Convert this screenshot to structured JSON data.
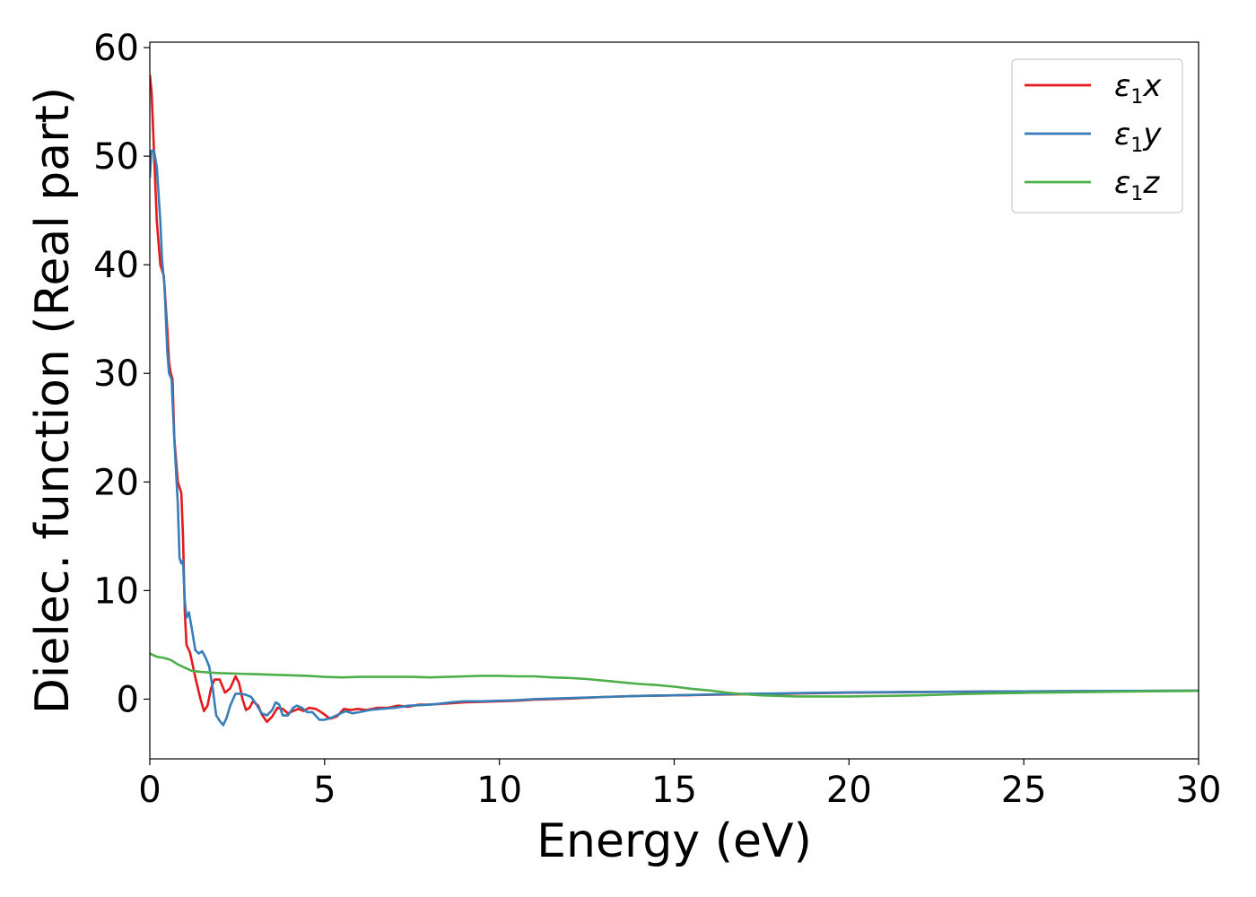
{
  "chart_data": {
    "type": "line",
    "xlabel": "Energy (eV)",
    "ylabel": "Dielec. function (Real part)",
    "xlim": [
      0,
      30
    ],
    "ylim": [
      -5.5,
      60.5
    ],
    "xticks": [
      "0",
      "5",
      "10",
      "15",
      "20",
      "25",
      "30"
    ],
    "yticks": [
      "0",
      "10",
      "20",
      "30",
      "40",
      "50",
      "60"
    ],
    "grid": false,
    "legend_position": "top-right",
    "series": [
      {
        "name": "ε1x",
        "legend": {
          "symbol": "ε",
          "sub": "1",
          "var": "x"
        },
        "color": "#e41a1c",
        "points": [
          [
            0,
            57.5
          ],
          [
            0.05,
            56
          ],
          [
            0.1,
            52
          ],
          [
            0.2,
            44
          ],
          [
            0.3,
            40
          ],
          [
            0.4,
            39
          ],
          [
            0.5,
            34
          ],
          [
            0.55,
            31
          ],
          [
            0.6,
            30
          ],
          [
            0.65,
            29.5
          ],
          [
            0.7,
            24
          ],
          [
            0.8,
            20
          ],
          [
            0.85,
            19.5
          ],
          [
            0.9,
            19
          ],
          [
            0.95,
            15
          ],
          [
            1.0,
            8
          ],
          [
            1.05,
            5
          ],
          [
            1.15,
            4.3
          ],
          [
            1.3,
            2
          ],
          [
            1.45,
            0
          ],
          [
            1.55,
            -1.1
          ],
          [
            1.65,
            -0.6
          ],
          [
            1.75,
            1
          ],
          [
            1.85,
            1.8
          ],
          [
            2.0,
            1.8
          ],
          [
            2.15,
            0.6
          ],
          [
            2.3,
            1
          ],
          [
            2.45,
            2.1
          ],
          [
            2.55,
            1.5
          ],
          [
            2.65,
            0
          ],
          [
            2.75,
            -1
          ],
          [
            2.85,
            -0.8
          ],
          [
            2.95,
            -0.2
          ],
          [
            3.1,
            -0.6
          ],
          [
            3.2,
            -1.4
          ],
          [
            3.35,
            -2.1
          ],
          [
            3.5,
            -1.6
          ],
          [
            3.65,
            -0.8
          ],
          [
            3.8,
            -0.9
          ],
          [
            3.95,
            -1.3
          ],
          [
            4.1,
            -1.1
          ],
          [
            4.25,
            -0.9
          ],
          [
            4.4,
            -1.1
          ],
          [
            4.55,
            -0.8
          ],
          [
            4.75,
            -0.9
          ],
          [
            4.95,
            -1.3
          ],
          [
            5.15,
            -1.8
          ],
          [
            5.35,
            -1.6
          ],
          [
            5.55,
            -0.9
          ],
          [
            5.75,
            -1.0
          ],
          [
            5.95,
            -0.9
          ],
          [
            6.2,
            -1.0
          ],
          [
            6.5,
            -0.8
          ],
          [
            6.8,
            -0.8
          ],
          [
            7.1,
            -0.6
          ],
          [
            7.4,
            -0.7
          ],
          [
            7.7,
            -0.5
          ],
          [
            8.0,
            -0.5
          ],
          [
            8.5,
            -0.4
          ],
          [
            9.0,
            -0.3
          ],
          [
            9.5,
            -0.25
          ],
          [
            10,
            -0.2
          ],
          [
            10.5,
            -0.15
          ],
          [
            11,
            -0.05
          ],
          [
            12,
            0.05
          ],
          [
            13,
            0.2
          ],
          [
            14,
            0.3
          ],
          [
            15,
            0.35
          ],
          [
            16,
            0.4
          ],
          [
            17,
            0.45
          ],
          [
            18,
            0.5
          ],
          [
            19,
            0.55
          ],
          [
            20,
            0.6
          ],
          [
            22,
            0.65
          ],
          [
            24,
            0.7
          ],
          [
            26,
            0.72
          ],
          [
            28,
            0.75
          ],
          [
            30,
            0.78
          ]
        ]
      },
      {
        "name": "ε1y",
        "legend": {
          "symbol": "ε",
          "sub": "1",
          "var": "y"
        },
        "color": "#377eb8",
        "points": [
          [
            0,
            48
          ],
          [
            0.05,
            50.5
          ],
          [
            0.12,
            50.5
          ],
          [
            0.2,
            49
          ],
          [
            0.3,
            44
          ],
          [
            0.35,
            40.5
          ],
          [
            0.42,
            38
          ],
          [
            0.5,
            32
          ],
          [
            0.55,
            30
          ],
          [
            0.62,
            29.5
          ],
          [
            0.7,
            24
          ],
          [
            0.75,
            21
          ],
          [
            0.8,
            18
          ],
          [
            0.85,
            13
          ],
          [
            0.9,
            12.5
          ],
          [
            0.95,
            12.8
          ],
          [
            1.0,
            9
          ],
          [
            1.05,
            7.5
          ],
          [
            1.12,
            8
          ],
          [
            1.2,
            6.5
          ],
          [
            1.3,
            4.5
          ],
          [
            1.4,
            4.2
          ],
          [
            1.5,
            4.4
          ],
          [
            1.6,
            3.8
          ],
          [
            1.7,
            3.0
          ],
          [
            1.8,
            1
          ],
          [
            1.9,
            -1.5
          ],
          [
            2.0,
            -2
          ],
          [
            2.1,
            -2.4
          ],
          [
            2.2,
            -1.7
          ],
          [
            2.3,
            -0.6
          ],
          [
            2.45,
            0.5
          ],
          [
            2.6,
            0.5
          ],
          [
            2.75,
            0.4
          ],
          [
            2.9,
            0.2
          ],
          [
            3.05,
            -0.5
          ],
          [
            3.2,
            -1.3
          ],
          [
            3.35,
            -1.5
          ],
          [
            3.5,
            -1.0
          ],
          [
            3.6,
            -0.3
          ],
          [
            3.7,
            -0.5
          ],
          [
            3.8,
            -1.5
          ],
          [
            3.95,
            -1.5
          ],
          [
            4.1,
            -0.8
          ],
          [
            4.2,
            -0.6
          ],
          [
            4.35,
            -0.8
          ],
          [
            4.5,
            -1.2
          ],
          [
            4.65,
            -1.2
          ],
          [
            4.85,
            -1.9
          ],
          [
            5.0,
            -1.9
          ],
          [
            5.2,
            -1.7
          ],
          [
            5.4,
            -1.4
          ],
          [
            5.6,
            -1.1
          ],
          [
            5.8,
            -1.3
          ],
          [
            6.0,
            -1.2
          ],
          [
            6.3,
            -1.0
          ],
          [
            6.6,
            -0.9
          ],
          [
            7.0,
            -0.8
          ],
          [
            7.4,
            -0.6
          ],
          [
            7.8,
            -0.55
          ],
          [
            8.2,
            -0.45
          ],
          [
            8.6,
            -0.3
          ],
          [
            9.0,
            -0.2
          ],
          [
            9.5,
            -0.2
          ],
          [
            10,
            -0.15
          ],
          [
            10.5,
            -0.1
          ],
          [
            11,
            0
          ],
          [
            12,
            0.1
          ],
          [
            13,
            0.2
          ],
          [
            14,
            0.3
          ],
          [
            15,
            0.35
          ],
          [
            16,
            0.42
          ],
          [
            17,
            0.48
          ],
          [
            18,
            0.52
          ],
          [
            19,
            0.58
          ],
          [
            20,
            0.62
          ],
          [
            22,
            0.66
          ],
          [
            24,
            0.7
          ],
          [
            26,
            0.73
          ],
          [
            28,
            0.76
          ],
          [
            30,
            0.79
          ]
        ]
      },
      {
        "name": "ε1z",
        "legend": {
          "symbol": "ε",
          "sub": "1",
          "var": "z"
        },
        "color": "#4daf4a",
        "points": [
          [
            0,
            4.2
          ],
          [
            0.2,
            3.9
          ],
          [
            0.4,
            3.8
          ],
          [
            0.6,
            3.6
          ],
          [
            0.8,
            3.2
          ],
          [
            1.0,
            2.9
          ],
          [
            1.2,
            2.6
          ],
          [
            1.5,
            2.5
          ],
          [
            2.0,
            2.4
          ],
          [
            2.5,
            2.35
          ],
          [
            3.0,
            2.3
          ],
          [
            3.5,
            2.25
          ],
          [
            4.0,
            2.2
          ],
          [
            4.5,
            2.15
          ],
          [
            5.0,
            2.05
          ],
          [
            5.5,
            2.0
          ],
          [
            6.0,
            2.05
          ],
          [
            6.5,
            2.05
          ],
          [
            7.0,
            2.05
          ],
          [
            7.5,
            2.05
          ],
          [
            8.0,
            2.0
          ],
          [
            8.5,
            2.05
          ],
          [
            9.0,
            2.1
          ],
          [
            9.5,
            2.15
          ],
          [
            10,
            2.15
          ],
          [
            10.5,
            2.1
          ],
          [
            11,
            2.1
          ],
          [
            11.5,
            2.0
          ],
          [
            12,
            1.95
          ],
          [
            12.5,
            1.85
          ],
          [
            13,
            1.7
          ],
          [
            13.5,
            1.55
          ],
          [
            14,
            1.4
          ],
          [
            14.5,
            1.3
          ],
          [
            15,
            1.15
          ],
          [
            15.5,
            0.95
          ],
          [
            16,
            0.8
          ],
          [
            16.5,
            0.6
          ],
          [
            17,
            0.45
          ],
          [
            17.5,
            0.35
          ],
          [
            18,
            0.3
          ],
          [
            18.5,
            0.25
          ],
          [
            19,
            0.25
          ],
          [
            19.5,
            0.25
          ],
          [
            20,
            0.25
          ],
          [
            21,
            0.3
          ],
          [
            22,
            0.35
          ],
          [
            23,
            0.45
          ],
          [
            24,
            0.52
          ],
          [
            25,
            0.58
          ],
          [
            26,
            0.62
          ],
          [
            27,
            0.66
          ],
          [
            28,
            0.7
          ],
          [
            29,
            0.73
          ],
          [
            30,
            0.76
          ]
        ]
      }
    ]
  }
}
